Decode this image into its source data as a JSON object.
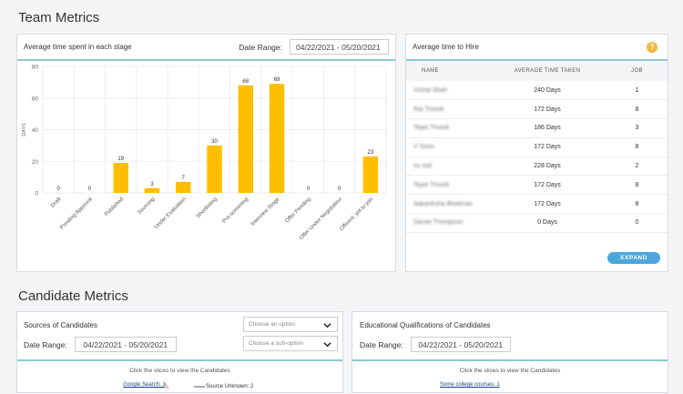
{
  "team_metrics": {
    "title": "Team Metrics"
  },
  "stage_card": {
    "title": "Average time spent in each stage",
    "date_label": "Date Range:",
    "date_value": "04/22/2021 - 05/20/2021"
  },
  "chart_data": {
    "type": "bar",
    "ylabel": "DAYS",
    "ylim": [
      0,
      80
    ],
    "yticks": [
      0,
      20,
      40,
      60,
      80
    ],
    "categories": [
      "Draft",
      "Pending Approval",
      "Published",
      "Sourcing",
      "Under Evaluation",
      "Shortlisting",
      "Pre-screening",
      "Interview Stage",
      "Offer Pending",
      "Offer Under Negotiation",
      "Offered, yet to join"
    ],
    "values": [
      0,
      0,
      19,
      3,
      7,
      30,
      68,
      69,
      0,
      0,
      23
    ],
    "bar_color": "#ffbe00",
    "grid": true
  },
  "hire_card": {
    "title": "Average time to Hire",
    "help_icon": "question-icon",
    "columns": {
      "name": "NAME",
      "avg": "AVERAGE TIME TAKEN",
      "job": "JOB"
    },
    "rows": [
      {
        "name": "Vishal Shah",
        "avg": "240 Days",
        "job": "1"
      },
      {
        "name": "Rai Trivedi",
        "avg": "172 Days",
        "job": "8"
      },
      {
        "name": "Tejas Trivedi",
        "avg": "186 Days",
        "job": "3"
      },
      {
        "name": "V Soon",
        "avg": "172 Days",
        "job": "8"
      },
      {
        "name": "ss ssd",
        "avg": "228 Days",
        "job": "2"
      },
      {
        "name": "Tejas Trivedi",
        "avg": "172 Days",
        "job": "8"
      },
      {
        "name": "Aakanksha Bhalerao",
        "avg": "172 Days",
        "job": "8"
      },
      {
        "name": "Daniel Thompson",
        "avg": "0 Days",
        "job": "0"
      }
    ],
    "expand_label": "EXPAND"
  },
  "candidate_metrics": {
    "title": "Candidate Metrics"
  },
  "sources_card": {
    "title": "Sources of Candidates",
    "option_placeholder": "Choose an option",
    "suboption_placeholder": "Choose a sub-option",
    "date_label": "Date Range:",
    "date_value": "04/22/2021 - 05/20/2021",
    "hint": "Click the slices to view the Candidates",
    "label_google": "Google Search: 1",
    "label_unknown": "Source Unknown: 2"
  },
  "edu_card": {
    "title": "Educational Qualifications of Candidates",
    "date_label": "Date Range:",
    "date_value": "04/22/2021 - 05/20/2021",
    "hint": "Click the slices to view the Candidates",
    "label_college": "Some college courses: 1"
  },
  "colors": {
    "accent_line": "#8fc6d4",
    "bar": "#ffbe00",
    "expand": "#4ca6dc",
    "help": "#f5b740"
  }
}
